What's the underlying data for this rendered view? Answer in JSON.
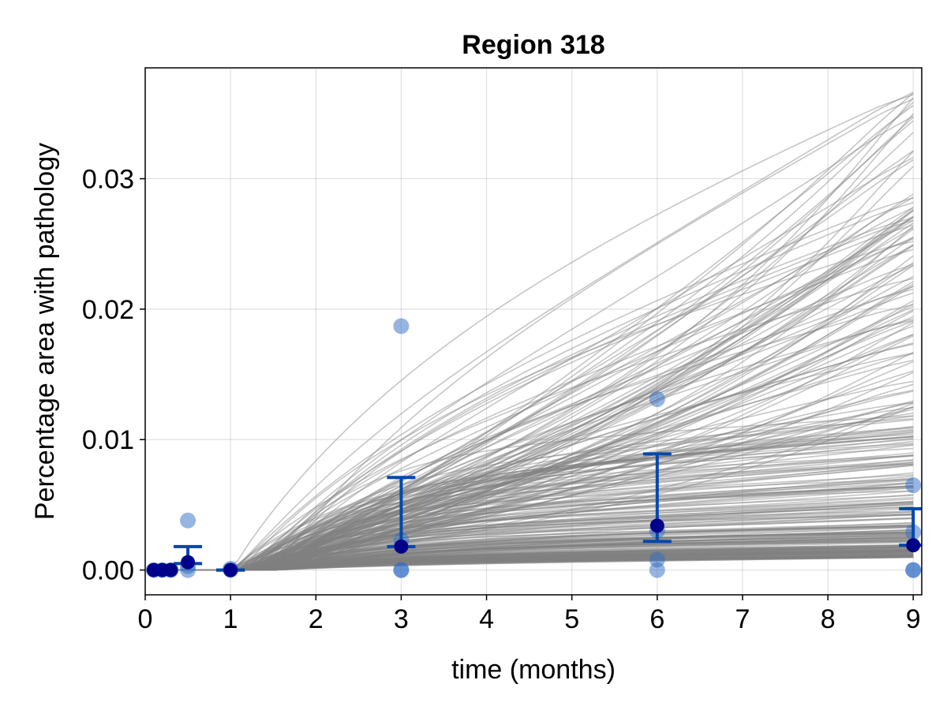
{
  "chart_data": {
    "type": "line",
    "title": "Region 318",
    "xlabel": "time (months)",
    "ylabel": "Percentage area with pathology",
    "xlim": [
      0,
      9.1
    ],
    "ylim": [
      -0.0019,
      0.0385
    ],
    "xticks": [
      0,
      1,
      2,
      3,
      4,
      5,
      6,
      7,
      8,
      9
    ],
    "xtick_labels": [
      "0",
      "1",
      "2",
      "3",
      "4",
      "5",
      "6",
      "7",
      "8",
      "9"
    ],
    "yticks": [
      0.0,
      0.01,
      0.02,
      0.03
    ],
    "ytick_labels": [
      "0.00",
      "0.01",
      "0.02",
      "0.03"
    ],
    "grid": true,
    "colors": {
      "trajectory": "#808080",
      "observed_points": "#2f6cc4",
      "mean_points": "#00008b",
      "error_bars": "#0047ab"
    },
    "trajectories": {
      "count": 300,
      "x_start": 0.2,
      "x_end": 9,
      "final_value_range": [
        0.001,
        0.037
      ],
      "description_of_shape": "sigmoid-like rise from near zero after ~1 month"
    },
    "observed_points": [
      {
        "x": 0.1,
        "y": 0.0
      },
      {
        "x": 0.2,
        "y": 0.0
      },
      {
        "x": 0.3,
        "y": 0.0
      },
      {
        "x": 0.5,
        "y": 0.0038
      },
      {
        "x": 0.5,
        "y": 0.0
      },
      {
        "x": 0.5,
        "y": 0.0003
      },
      {
        "x": 1.0,
        "y": 0.0
      },
      {
        "x": 1.0,
        "y": 0.0001
      },
      {
        "x": 3.0,
        "y": 0.0187
      },
      {
        "x": 3.0,
        "y": 0.0023
      },
      {
        "x": 3.0,
        "y": 0.0
      },
      {
        "x": 3.0,
        "y": 0.0
      },
      {
        "x": 6.0,
        "y": 0.0131
      },
      {
        "x": 6.0,
        "y": 0.003
      },
      {
        "x": 6.0,
        "y": 0.0008
      },
      {
        "x": 6.0,
        "y": 0.0
      },
      {
        "x": 9.0,
        "y": 0.0065
      },
      {
        "x": 9.0,
        "y": 0.0029
      },
      {
        "x": 9.0,
        "y": 0.0
      },
      {
        "x": 9.0,
        "y": 0.0
      }
    ],
    "means": [
      {
        "x": 0.1,
        "y": 0.0
      },
      {
        "x": 0.2,
        "y": 0.0
      },
      {
        "x": 0.3,
        "y": 0.0
      },
      {
        "x": 0.5,
        "y": 0.0006
      },
      {
        "x": 1.0,
        "y": 0.0
      },
      {
        "x": 3.0,
        "y": 0.0018
      },
      {
        "x": 6.0,
        "y": 0.0034
      },
      {
        "x": 9.0,
        "y": 0.0019
      }
    ],
    "error_bars": [
      {
        "x": 0.5,
        "low": 0.0005,
        "high": 0.0018
      },
      {
        "x": 1.0,
        "low": 0.0,
        "high": 0.0
      },
      {
        "x": 3.0,
        "low": 0.0018,
        "high": 0.0071
      },
      {
        "x": 6.0,
        "low": 0.0022,
        "high": 0.0089
      },
      {
        "x": 9.0,
        "low": 0.0019,
        "high": 0.0047
      }
    ]
  }
}
